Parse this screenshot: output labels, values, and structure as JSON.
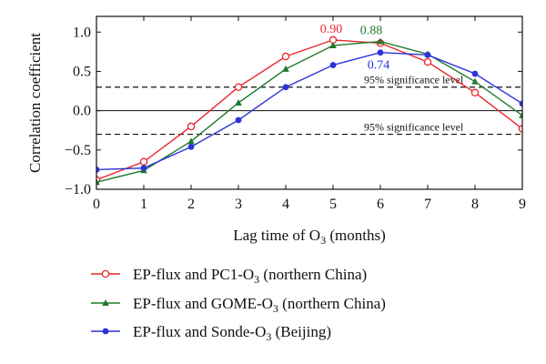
{
  "chart_data": {
    "type": "line",
    "xlabel_parts": {
      "base": "Lag time of O",
      "sub": "3",
      "tail": " (months)"
    },
    "ylabel": "Correlation coefficient",
    "xlim": [
      0,
      9
    ],
    "ylim": [
      -1.0,
      1.2
    ],
    "x_ticks": [
      "0",
      "1",
      "2",
      "3",
      "4",
      "5",
      "6",
      "7",
      "8",
      "9"
    ],
    "y_ticks": [
      "-1.0",
      "-0.5",
      "0.0",
      "0.5",
      "1.0"
    ],
    "significance_lines": [
      {
        "value": 0.3,
        "label": "95% significance level"
      },
      {
        "value": -0.3,
        "label": "95% significance level"
      }
    ],
    "x": [
      0,
      1,
      2,
      3,
      4,
      5,
      6,
      7,
      8,
      9
    ],
    "series": [
      {
        "name_parts": {
          "base": "EP-flux and PC1-O",
          "sub": "3",
          "tail": " (northern China)"
        },
        "color": "#e8262b",
        "marker": "open-circle",
        "values": [
          -0.88,
          -0.65,
          -0.2,
          0.3,
          0.69,
          0.9,
          0.86,
          0.62,
          0.23,
          -0.23
        ]
      },
      {
        "name_parts": {
          "base": "EP-flux and GOME-O",
          "sub": "3",
          "tail": " (northern China)"
        },
        "color": "#1e7a2a",
        "marker": "triangle",
        "values": [
          -0.91,
          -0.76,
          -0.39,
          0.1,
          0.53,
          0.83,
          0.88,
          0.72,
          0.37,
          -0.06
        ]
      },
      {
        "name_parts": {
          "base": "EP-flux and Sonde-O",
          "sub": "3",
          "tail": " (Beijing)"
        },
        "color": "#2b33d9",
        "marker": "filled-circle",
        "values": [
          -0.75,
          -0.73,
          -0.46,
          -0.12,
          0.3,
          0.58,
          0.74,
          0.71,
          0.47,
          0.09
        ]
      }
    ],
    "annotations": [
      {
        "text": "0.90",
        "series": 0,
        "x": 5
      },
      {
        "text": "0.88",
        "series": 1,
        "x": 6
      },
      {
        "text": "0.74",
        "series": 2,
        "x": 6
      }
    ]
  }
}
